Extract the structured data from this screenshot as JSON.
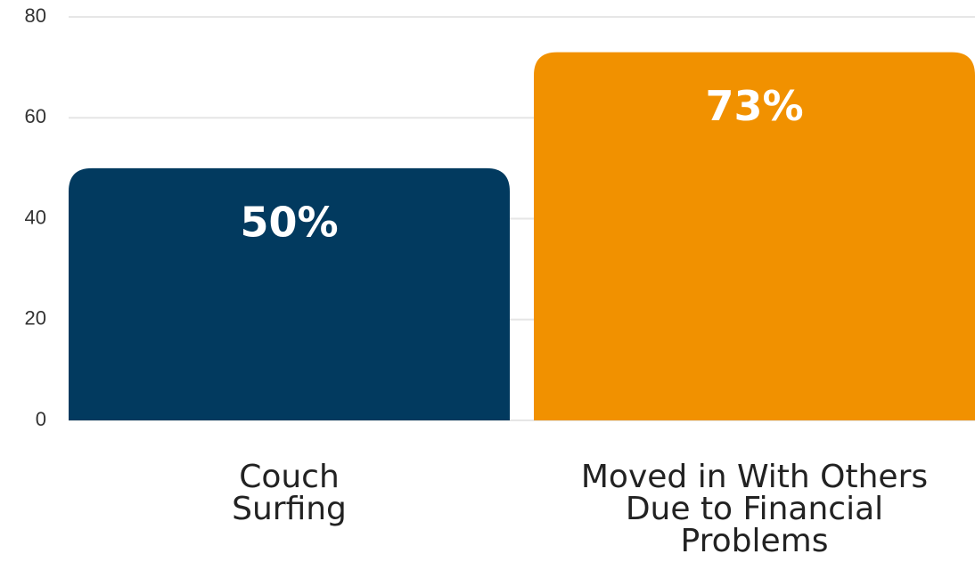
{
  "chart_data": {
    "type": "bar",
    "categories": [
      [
        "Couch",
        "Surfing"
      ],
      [
        "Moved in With Others",
        "Due to Financial",
        "Problems"
      ]
    ],
    "values": [
      50,
      73
    ],
    "value_labels": [
      "50%",
      "73%"
    ],
    "colors": [
      "#023a5f",
      "#f19100"
    ],
    "ylim": [
      0,
      80
    ],
    "yticks": [
      0,
      20,
      40,
      60,
      80
    ],
    "grid": true
  }
}
